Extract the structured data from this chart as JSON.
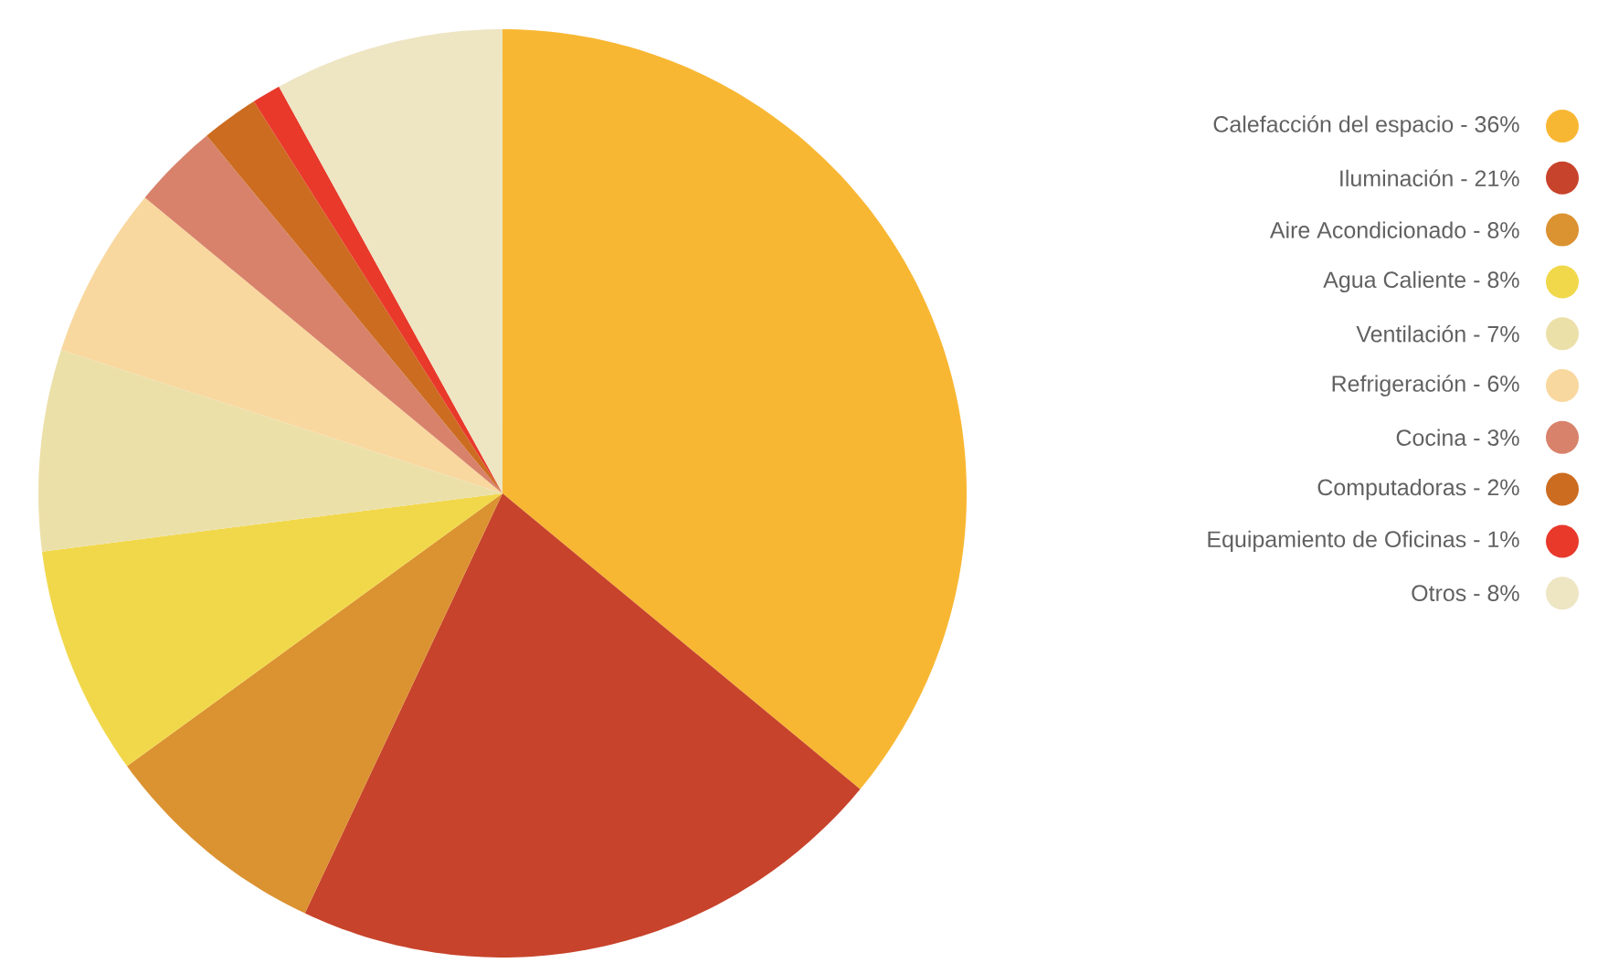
{
  "chart_data": {
    "type": "pie",
    "legend": "right",
    "categories": [
      "Calefacción del espacio - 36%",
      "Iluminación - 21%",
      "Aire Acondicionado - 8%",
      "Agua Caliente - 8%",
      "Ventilación - 7%",
      "Refrigeración - 6%",
      "Cocina - 3%",
      "Computadoras - 2%",
      "Equipamiento de Oficinas - 1%",
      "Otros - 8%"
    ],
    "values": [
      36,
      21,
      8,
      8,
      7,
      6,
      3,
      2,
      1,
      8
    ],
    "colors": [
      "#f8b733",
      "#c7432b",
      "#db9231",
      "#f1d84b",
      "#ece0a9",
      "#f8d89f",
      "#d8826b",
      "#cc6c20",
      "#e8392b",
      "#eee5c3"
    ]
  }
}
